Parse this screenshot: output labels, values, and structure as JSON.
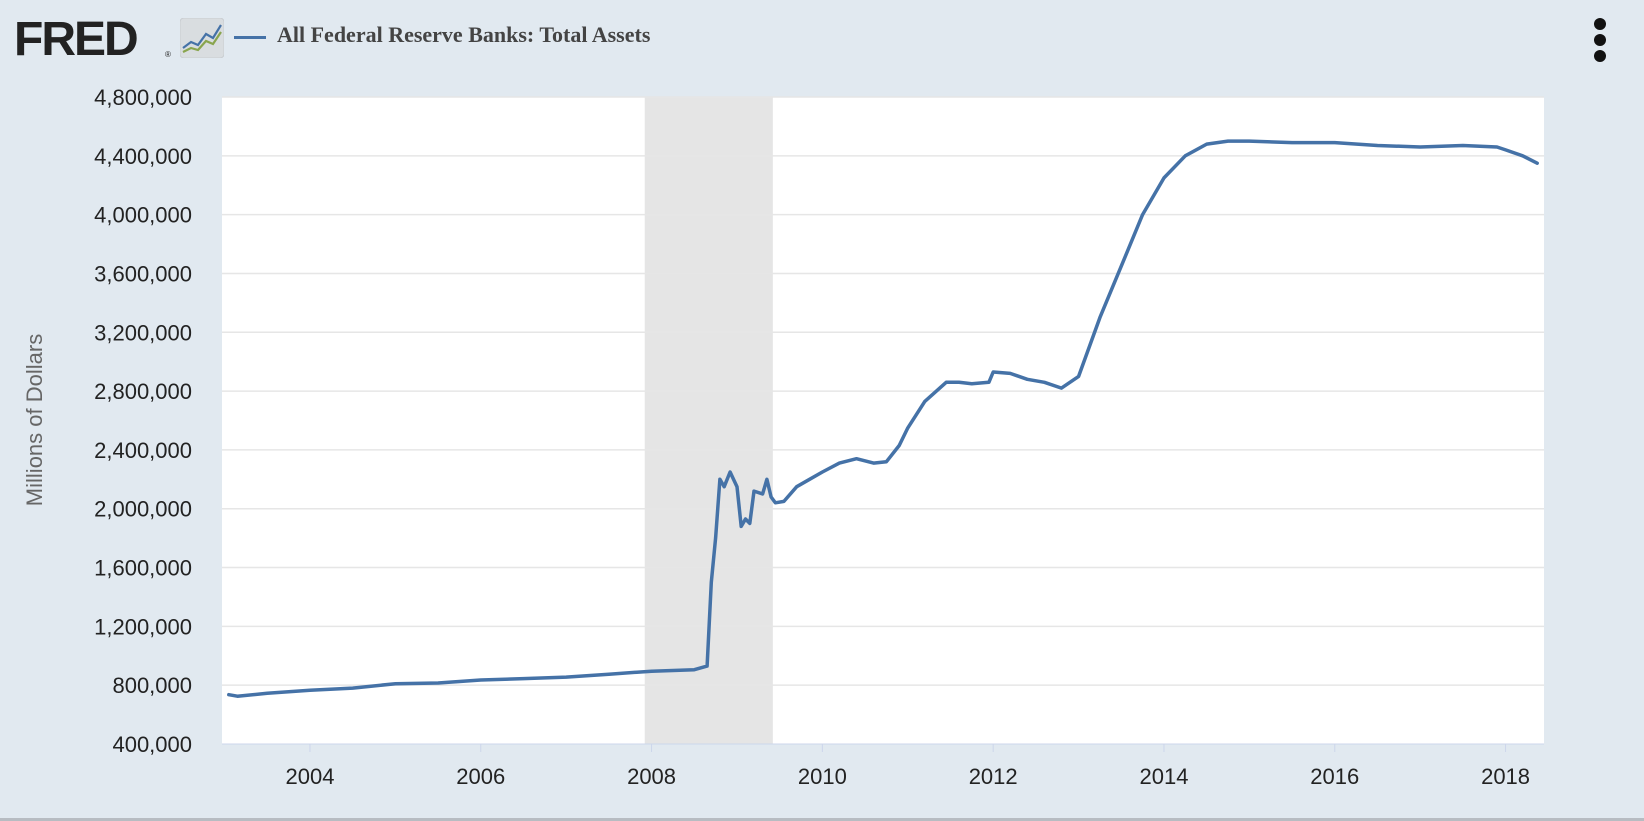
{
  "header": {
    "logo_text": "FRED",
    "logo_reg": "®",
    "series_title": "All Federal Reserve Banks: Total Assets"
  },
  "colors": {
    "background": "#e1e9f0",
    "plot_background": "#ffffff",
    "series": "#4572a7",
    "recession": "#e5e5e5",
    "grid": "#e6e6e6"
  },
  "icons": {
    "graph": "line-graph-icon",
    "menu": "vertical-ellipsis-icon"
  },
  "chart_data": {
    "type": "line",
    "title": "All Federal Reserve Banks: Total Assets",
    "ylabel": "Millions of Dollars",
    "xlabel": "",
    "ylim": [
      400000,
      4800000
    ],
    "xlim": [
      2002.97,
      2018.45
    ],
    "y_ticks": [
      400000,
      800000,
      1200000,
      1600000,
      2000000,
      2400000,
      2800000,
      3200000,
      3600000,
      4000000,
      4400000,
      4800000
    ],
    "y_tick_labels": [
      "400,000",
      "800,000",
      "1,200,000",
      "1,600,000",
      "2,000,000",
      "2,400,000",
      "2,800,000",
      "3,200,000",
      "3,600,000",
      "4,000,000",
      "4,400,000",
      "4,800,000"
    ],
    "x_ticks": [
      2004,
      2006,
      2008,
      2010,
      2012,
      2014,
      2016,
      2018
    ],
    "x_tick_labels": [
      "2004",
      "2006",
      "2008",
      "2010",
      "2012",
      "2014",
      "2016",
      "2018"
    ],
    "grid": true,
    "recessions": [
      {
        "start": 2007.92,
        "end": 2009.42
      }
    ],
    "series": [
      {
        "name": "All Federal Reserve Banks: Total Assets",
        "color": "#4572a7",
        "x": [
          2003.05,
          2003.15,
          2003.5,
          2004.0,
          2004.5,
          2005.0,
          2005.5,
          2006.0,
          2006.5,
          2007.0,
          2007.5,
          2008.0,
          2008.5,
          2008.65,
          2008.7,
          2008.75,
          2008.8,
          2008.85,
          2008.92,
          2009.0,
          2009.05,
          2009.1,
          2009.15,
          2009.2,
          2009.3,
          2009.35,
          2009.4,
          2009.45,
          2009.55,
          2009.7,
          2009.85,
          2010.0,
          2010.2,
          2010.4,
          2010.6,
          2010.75,
          2010.9,
          2011.0,
          2011.2,
          2011.45,
          2011.6,
          2011.75,
          2011.95,
          2012.0,
          2012.2,
          2012.4,
          2012.6,
          2012.8,
          2013.0,
          2013.25,
          2013.5,
          2013.75,
          2014.0,
          2014.25,
          2014.5,
          2014.75,
          2015.0,
          2015.5,
          2016.0,
          2016.5,
          2017.0,
          2017.5,
          2017.9,
          2018.0,
          2018.2,
          2018.37
        ],
        "values": [
          735000,
          725000,
          745000,
          765000,
          780000,
          810000,
          815000,
          835000,
          845000,
          855000,
          875000,
          895000,
          905000,
          930000,
          1500000,
          1800000,
          2200000,
          2150000,
          2250000,
          2150000,
          1880000,
          1930000,
          1900000,
          2120000,
          2100000,
          2200000,
          2080000,
          2040000,
          2050000,
          2150000,
          2200000,
          2250000,
          2310000,
          2340000,
          2310000,
          2320000,
          2430000,
          2550000,
          2730000,
          2860000,
          2860000,
          2850000,
          2860000,
          2930000,
          2920000,
          2880000,
          2860000,
          2820000,
          2900000,
          3300000,
          3650000,
          4000000,
          4250000,
          4400000,
          4480000,
          4500000,
          4500000,
          4490000,
          4490000,
          4470000,
          4460000,
          4470000,
          4460000,
          4440000,
          4400000,
          4350000
        ]
      }
    ]
  }
}
